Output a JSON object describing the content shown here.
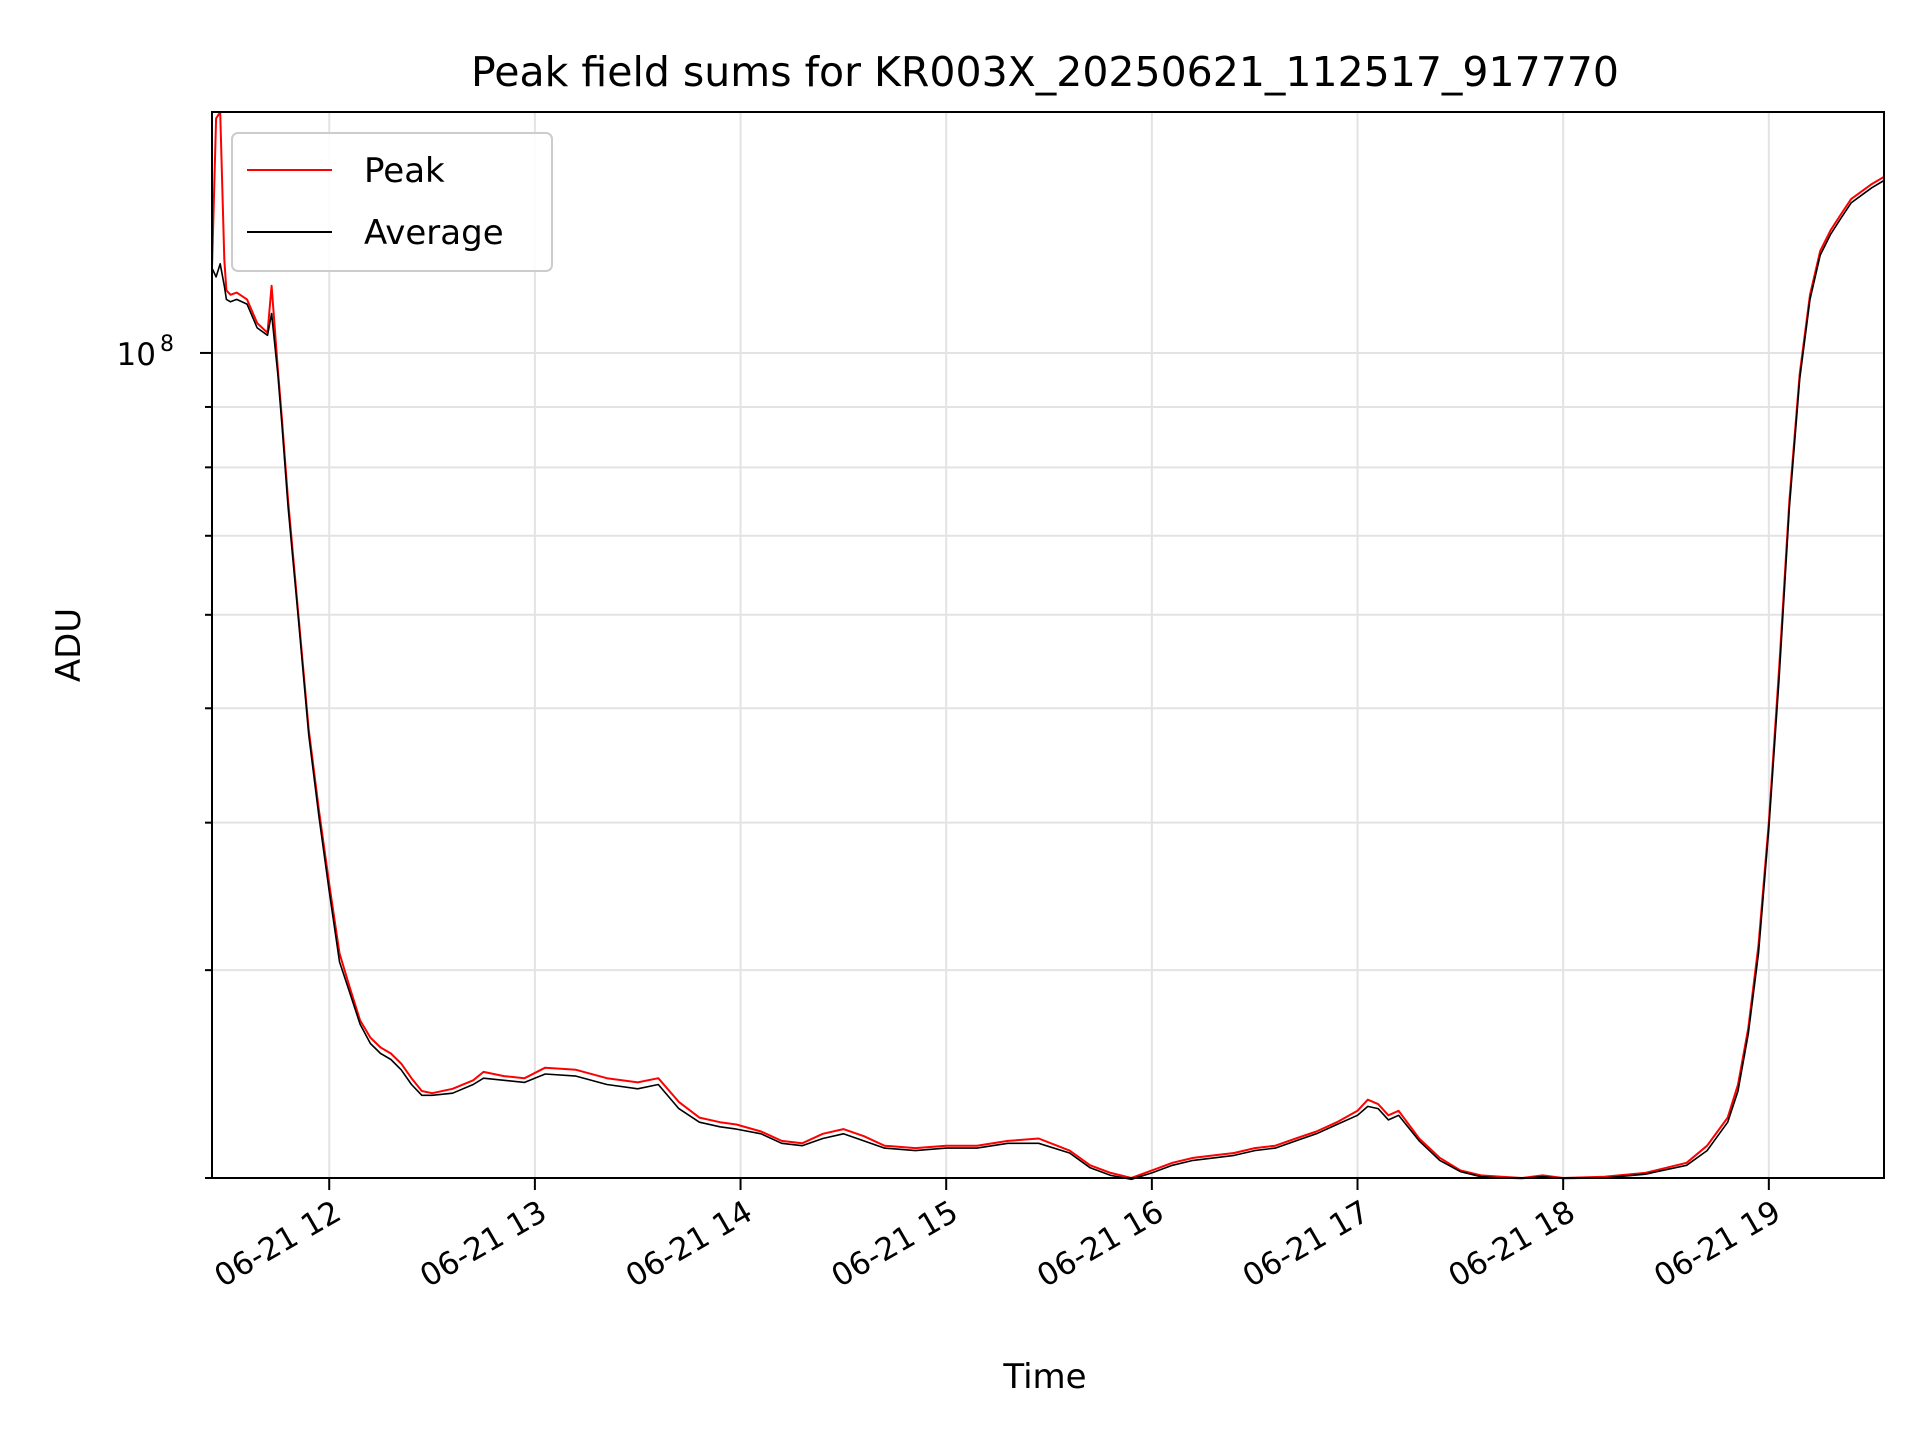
{
  "chart_data": {
    "type": "line",
    "title": "Peak field sums for KR003X_20250621_112517_917770",
    "xlabel": "Time",
    "ylabel": "ADU",
    "y_scale": "log",
    "y_tick_labels": [
      {
        "base": "10",
        "exp": "8",
        "value": 100000000
      }
    ],
    "x_tick_labels": [
      "06-21 12",
      "06-21 13",
      "06-21 14",
      "06-21 15",
      "06-21 16",
      "06-21 17",
      "06-21 18",
      "06-21 19"
    ],
    "x_tick_hours": [
      12,
      13,
      14,
      15,
      16,
      17,
      18,
      19
    ],
    "xlim_hours": [
      11.43,
      19.56
    ],
    "ylim": [
      20000000,
      160000000
    ],
    "grid": true,
    "legend_position": "top-left",
    "series": [
      {
        "name": "Peak",
        "color": "#ff0000",
        "x_hours": [
          11.43,
          11.45,
          11.47,
          11.49,
          11.5,
          11.52,
          11.55,
          11.6,
          11.65,
          11.7,
          11.72,
          11.75,
          11.77,
          11.8,
          11.85,
          11.9,
          11.95,
          12.0,
          12.05,
          12.1,
          12.15,
          12.2,
          12.25,
          12.3,
          12.35,
          12.4,
          12.45,
          12.5,
          12.6,
          12.7,
          12.75,
          12.85,
          12.95,
          13.05,
          13.2,
          13.35,
          13.5,
          13.6,
          13.7,
          13.8,
          13.9,
          13.98,
          14.1,
          14.2,
          14.3,
          14.4,
          14.5,
          14.6,
          14.7,
          14.85,
          15.0,
          15.15,
          15.3,
          15.45,
          15.6,
          15.7,
          15.8,
          15.9,
          16.0,
          16.1,
          16.2,
          16.3,
          16.4,
          16.5,
          16.6,
          16.7,
          16.8,
          16.9,
          17.0,
          17.05,
          17.1,
          17.15,
          17.2,
          17.3,
          17.4,
          17.5,
          17.6,
          17.7,
          17.8,
          17.9,
          18.0,
          18.2,
          18.4,
          18.6,
          18.7,
          18.8,
          18.85,
          18.9,
          18.95,
          19.0,
          19.05,
          19.1,
          19.15,
          19.2,
          19.25,
          19.3,
          19.35,
          19.4,
          19.45,
          19.5,
          19.56
        ],
        "values": [
          118000000,
          158000000,
          160000000,
          120000000,
          113000000,
          112000000,
          112500000,
          111000000,
          106000000,
          104000000,
          114000000,
          97000000,
          88000000,
          75000000,
          60000000,
          48000000,
          41000000,
          35500000,
          31000000,
          29000000,
          27200000,
          26300000,
          25800000,
          25500000,
          25000000,
          24300000,
          23700000,
          23600000,
          23800000,
          24200000,
          24600000,
          24400000,
          24300000,
          24800000,
          24700000,
          24300000,
          24100000,
          24300000,
          23200000,
          22500000,
          22300000,
          22200000,
          21900000,
          21500000,
          21400000,
          21800000,
          22000000,
          21700000,
          21300000,
          21200000,
          21300000,
          21300000,
          21500000,
          21600000,
          21100000,
          20500000,
          20200000,
          20000000,
          20300000,
          20600000,
          20800000,
          20900000,
          21000000,
          21200000,
          21300000,
          21600000,
          21900000,
          22300000,
          22800000,
          23300000,
          23100000,
          22600000,
          22800000,
          21600000,
          20800000,
          20300000,
          20100000,
          20050000,
          20000000,
          20100000,
          20000000,
          20050000,
          20200000,
          20600000,
          21300000,
          22500000,
          24000000,
          26800000,
          31500000,
          40000000,
          54000000,
          75000000,
          96000000,
          112000000,
          122000000,
          127000000,
          131000000,
          135000000,
          137000000,
          139000000,
          141000000
        ]
      },
      {
        "name": "Average",
        "color": "#000000",
        "x_hours": [
          11.43,
          11.45,
          11.47,
          11.49,
          11.5,
          11.52,
          11.55,
          11.6,
          11.65,
          11.7,
          11.72,
          11.75,
          11.77,
          11.8,
          11.85,
          11.9,
          11.95,
          12.0,
          12.05,
          12.1,
          12.15,
          12.2,
          12.25,
          12.3,
          12.35,
          12.4,
          12.45,
          12.5,
          12.6,
          12.7,
          12.75,
          12.85,
          12.95,
          13.05,
          13.2,
          13.35,
          13.5,
          13.6,
          13.7,
          13.8,
          13.9,
          13.98,
          14.1,
          14.2,
          14.3,
          14.4,
          14.5,
          14.6,
          14.7,
          14.85,
          15.0,
          15.15,
          15.3,
          15.45,
          15.6,
          15.7,
          15.8,
          15.9,
          16.0,
          16.1,
          16.2,
          16.3,
          16.4,
          16.5,
          16.6,
          16.7,
          16.8,
          16.9,
          17.0,
          17.05,
          17.1,
          17.15,
          17.2,
          17.3,
          17.4,
          17.5,
          17.6,
          17.7,
          17.8,
          17.9,
          18.0,
          18.2,
          18.4,
          18.6,
          18.7,
          18.8,
          18.85,
          18.9,
          18.95,
          19.0,
          19.05,
          19.1,
          19.15,
          19.2,
          19.25,
          19.3,
          19.35,
          19.4,
          19.45,
          19.5,
          19.56
        ],
        "values": [
          118000000,
          116000000,
          119000000,
          114000000,
          111000000,
          110500000,
          111000000,
          110000000,
          105000000,
          103500000,
          108000000,
          96000000,
          87000000,
          74000000,
          59500000,
          47500000,
          40500000,
          35000000,
          30500000,
          28700000,
          27000000,
          26000000,
          25500000,
          25200000,
          24700000,
          24000000,
          23500000,
          23500000,
          23600000,
          24000000,
          24300000,
          24200000,
          24100000,
          24500000,
          24400000,
          24000000,
          23800000,
          24000000,
          22900000,
          22300000,
          22100000,
          22000000,
          21800000,
          21400000,
          21300000,
          21600000,
          21800000,
          21500000,
          21200000,
          21100000,
          21200000,
          21200000,
          21400000,
          21400000,
          21000000,
          20400000,
          20100000,
          19950000,
          20200000,
          20500000,
          20700000,
          20800000,
          20900000,
          21100000,
          21200000,
          21500000,
          21800000,
          22200000,
          22600000,
          23000000,
          22900000,
          22400000,
          22600000,
          21500000,
          20700000,
          20250000,
          20050000,
          20000000,
          19980000,
          20050000,
          19980000,
          20000000,
          20150000,
          20500000,
          21100000,
          22300000,
          23700000,
          26500000,
          31000000,
          39500000,
          53000000,
          74000000,
          95000000,
          111000000,
          121000000,
          126000000,
          130000000,
          134000000,
          136000000,
          138000000,
          140000000
        ]
      }
    ]
  }
}
